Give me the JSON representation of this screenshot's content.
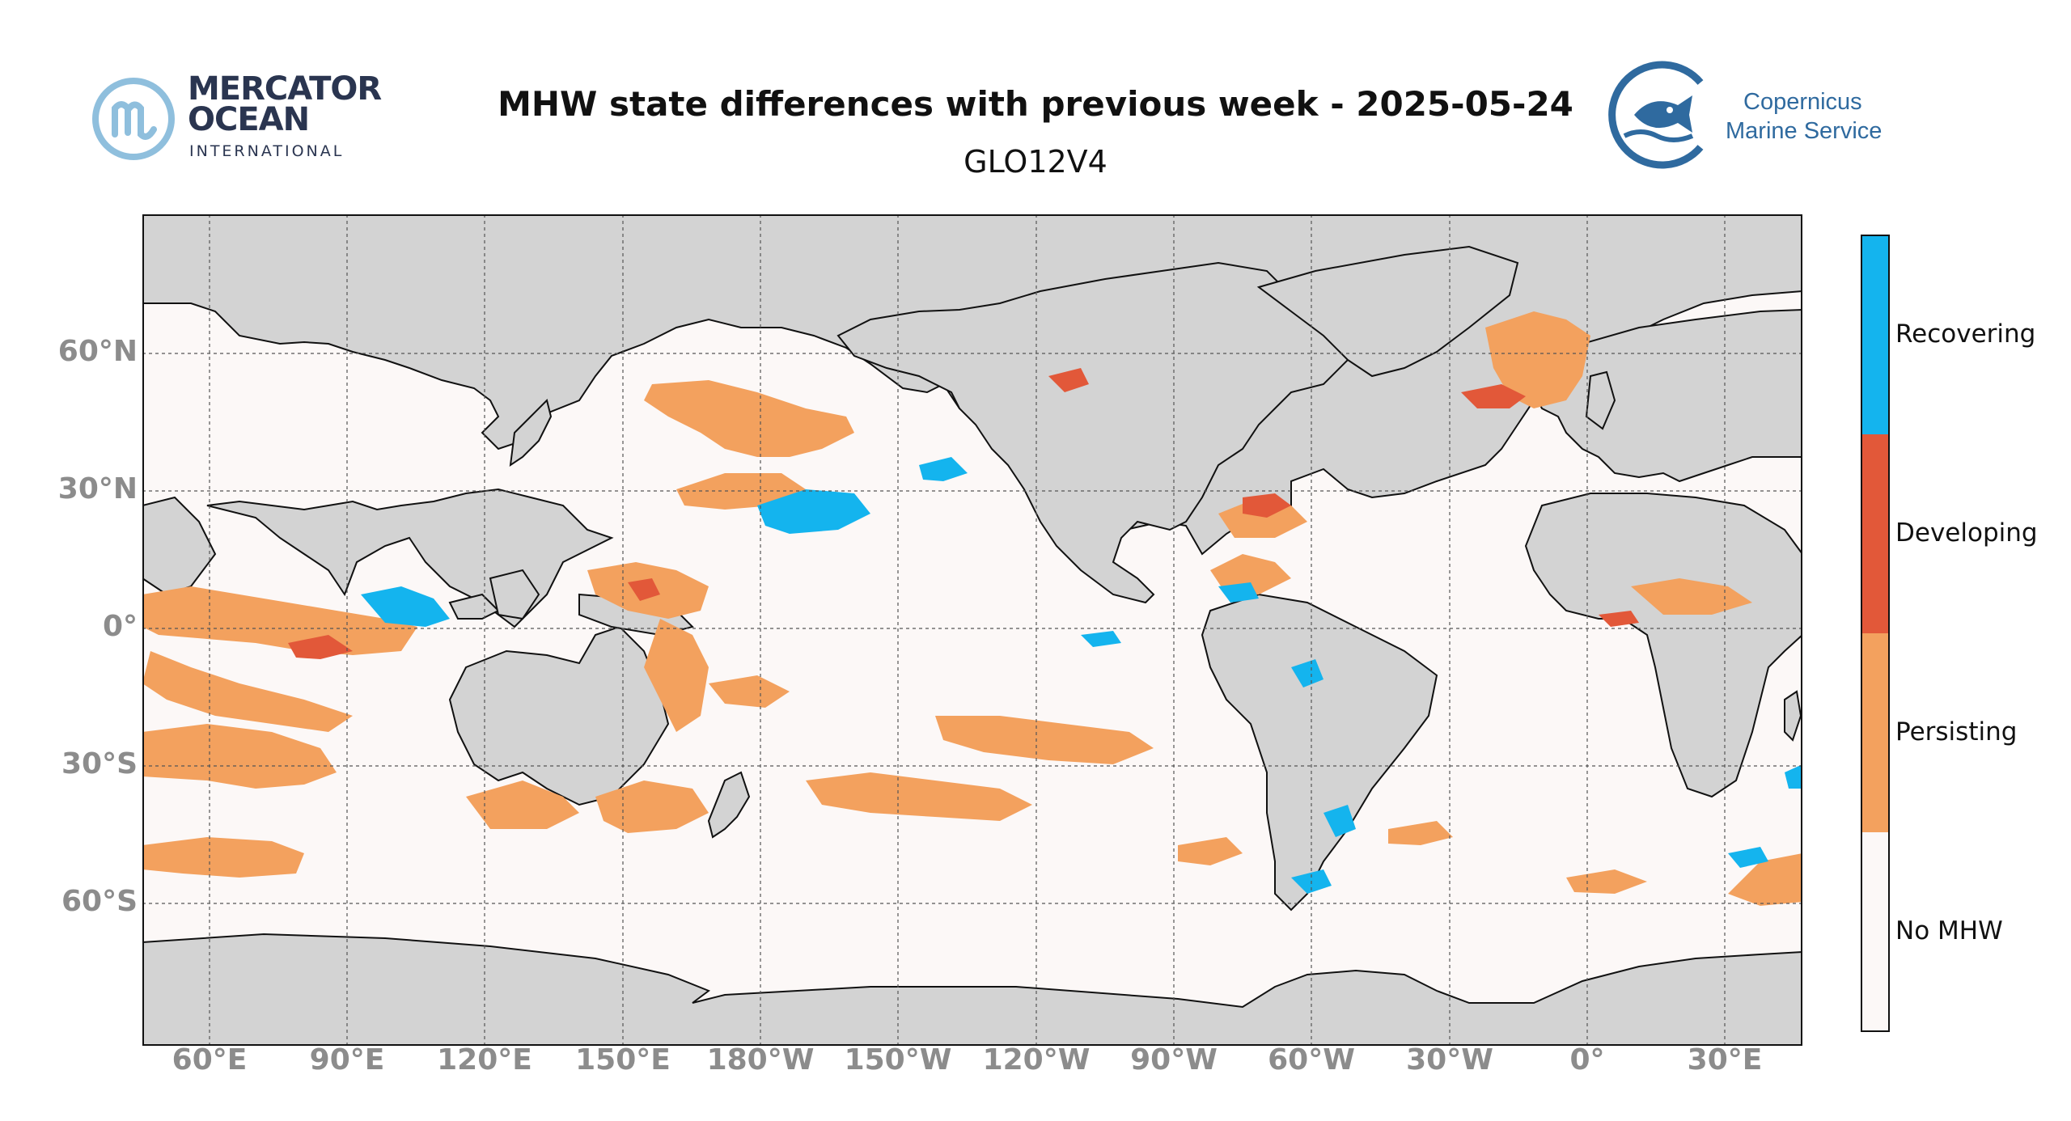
{
  "header": {
    "title": "MHW state differences with previous week - 2025-05-24",
    "subtitle": "GLO12V4"
  },
  "logos": {
    "mercator": {
      "line1": "MERCATOR",
      "line2": "OCEAN",
      "line3": "INTERNATIONAL"
    },
    "copernicus": {
      "line1": "Copernicus",
      "line2": "Marine Service"
    }
  },
  "map": {
    "latitude_labels": [
      "60°N",
      "30°N",
      "0°",
      "30°S",
      "60°S"
    ],
    "longitude_labels": [
      "60°E",
      "90°E",
      "120°E",
      "150°E",
      "180°W",
      "150°W",
      "120°W",
      "90°W",
      "60°W",
      "30°W",
      "0°",
      "30°E"
    ],
    "gridlines": true,
    "land_color": "#d3d3d3",
    "ocean_color": "#fcf8f7"
  },
  "colorbar": {
    "categories": [
      {
        "label": "Recovering",
        "color": "#14b4ee"
      },
      {
        "label": "Developing",
        "color": "#e25839"
      },
      {
        "label": "Persisting",
        "color": "#f3a15e"
      },
      {
        "label": "No MHW",
        "color": "#fcf8f7"
      }
    ]
  }
}
